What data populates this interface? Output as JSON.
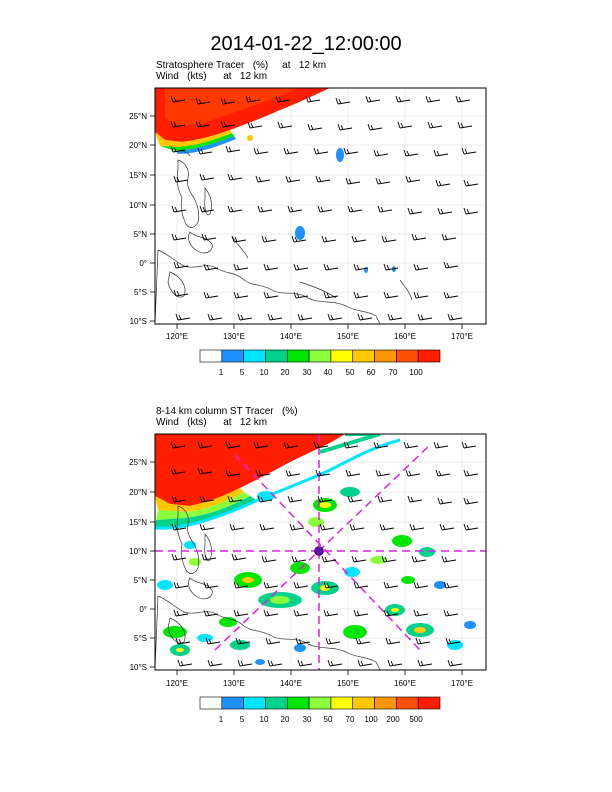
{
  "title": "2014-01-22_12:00:00",
  "panels": [
    {
      "field_label": "Stratosphere Tracer   (%)     at   12 km",
      "wind_label": "Wind   (kts)      at   12 km",
      "lat_ticks": [
        "25°N",
        "20°N",
        "15°N",
        "10°N",
        "5°N",
        "0°",
        "5°S",
        "10°S"
      ],
      "lon_ticks": [
        "120°E",
        "130°E",
        "140°E",
        "150°E",
        "160°E",
        "170°E"
      ],
      "colorbar_labels": [
        "1",
        "5",
        "10",
        "20",
        "30",
        "40",
        "50",
        "60",
        "70",
        "100"
      ],
      "colorbar_colors": [
        "#ffffff",
        "#1e90ff",
        "#00e5ff",
        "#00d28c",
        "#00e600",
        "#8cff3c",
        "#ffff00",
        "#ffc800",
        "#ff9600",
        "#ff5000",
        "#ff1e00"
      ]
    },
    {
      "field_label": "8-14 km column ST Tracer   (%)",
      "wind_label": "Wind   (kts)      at   12 km",
      "lat_ticks": [
        "25°N",
        "20°N",
        "15°N",
        "10°N",
        "5°N",
        "0°",
        "5°S",
        "10°S"
      ],
      "lon_ticks": [
        "120°E",
        "130°E",
        "140°E",
        "150°E",
        "160°E",
        "170°E"
      ],
      "colorbar_labels": [
        "1",
        "5",
        "10",
        "20",
        "30",
        "50",
        "70",
        "100",
        "200",
        "500"
      ],
      "colorbar_colors": [
        "#ffffff",
        "#1e90ff",
        "#00e5ff",
        "#00d28c",
        "#00e600",
        "#8cff3c",
        "#ffff00",
        "#ffc800",
        "#ff9600",
        "#ff5000",
        "#ff1e00"
      ]
    }
  ],
  "map_extent": {
    "lon": [
      116,
      174
    ],
    "lat": [
      -10,
      28
    ]
  },
  "cross_section_center": {
    "lon": 145,
    "lat": 10
  }
}
